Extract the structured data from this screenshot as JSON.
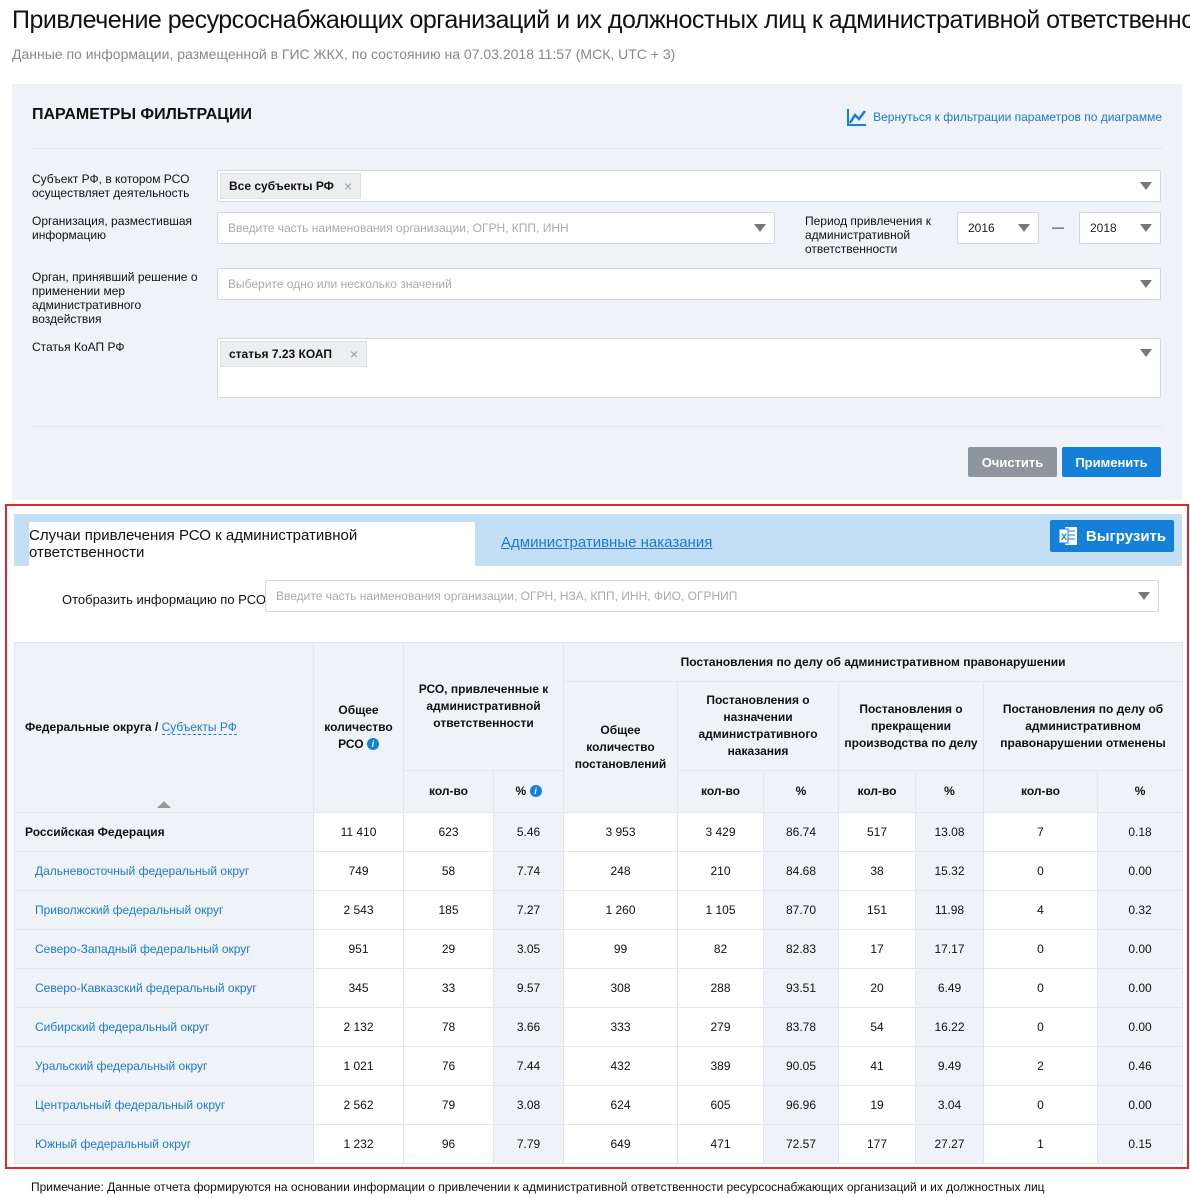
{
  "header": {
    "title": "Привлечение ресурсоснабжающих организаций и их должностных лиц к административной ответственности",
    "subtitle": "Данные по информации, размещенной в ГИС ЖКХ, по состоянию на 07.03.2018 11:57 (МСК, UTC + 3)"
  },
  "filter": {
    "title": "ПАРАМЕТРЫ ФИЛЬТРАЦИИ",
    "back_link": "Вернуться к фильтрации параметров по диаграмме",
    "subject_label": "Субъект РФ, в котором РСО осуществляет деятельность",
    "subject_chip": "Все субъекты РФ",
    "org_label": "Организация, разместившая информацию",
    "org_placeholder": "Введите часть наименования организации, ОГРН, КПП, ИНН",
    "period_label": "Период привлечения к административной ответственности",
    "period_from": "2016",
    "period_dash": "—",
    "period_to": "2018",
    "organ_label": "Орган, принявший решение о применении мер административного воздействия",
    "organ_placeholder": "Выберите одно или несколько значений",
    "article_label": "Статья КоАП РФ",
    "article_chip": "статья 7.23 КОАП",
    "clear": "Очистить",
    "apply": "Применить",
    "chip_close": "×"
  },
  "tabs": {
    "active": "Случаи привлечения РСО к административной ответственности",
    "other": "Административные наказания",
    "export": "Выгрузить"
  },
  "rso": {
    "label": "Отобразить информацию по РСО",
    "placeholder": "Введите часть наименования организации, ОГРН, НЗА, КПП, ИНН, ФИО, ОГРНИП"
  },
  "table": {
    "h_name": "Федеральные округа",
    "h_sep": " / ",
    "h_sub": "Субъекты РФ",
    "h_total_rso": "Общее количество РСО",
    "h_rso_attr": "РСО, привлеченные к административной ответственности",
    "h_decisions": "Постановления по делу об административном правонарушении",
    "h_total_dec": "Общее количество постановлений",
    "h_assign": "Постановления о назначении административного наказания",
    "h_terminate": "Постановления о прекращении производства по делу",
    "h_cancel": "Постановления по делу об административном правонарушении отменены",
    "h_qty": "кол-во",
    "h_pct": "%",
    "info": "i",
    "rows": [
      {
        "name": "Российская Федерация",
        "v": [
          "11 410",
          "623",
          "5.46",
          "3 953",
          "3 429",
          "86.74",
          "517",
          "13.08",
          "7",
          "0.18"
        ]
      },
      {
        "name": "Дальневосточный федеральный округ",
        "v": [
          "749",
          "58",
          "7.74",
          "248",
          "210",
          "84.68",
          "38",
          "15.32",
          "0",
          "0.00"
        ]
      },
      {
        "name": "Приволжский федеральный округ",
        "v": [
          "2 543",
          "185",
          "7.27",
          "1 260",
          "1 105",
          "87.70",
          "151",
          "11.98",
          "4",
          "0.32"
        ]
      },
      {
        "name": "Северо-Западный федеральный округ",
        "v": [
          "951",
          "29",
          "3.05",
          "99",
          "82",
          "82.83",
          "17",
          "17.17",
          "0",
          "0.00"
        ]
      },
      {
        "name": "Северо-Кавказский федеральный округ",
        "v": [
          "345",
          "33",
          "9.57",
          "308",
          "288",
          "93.51",
          "20",
          "6.49",
          "0",
          "0.00"
        ]
      },
      {
        "name": "Сибирский федеральный округ",
        "v": [
          "2 132",
          "78",
          "3.66",
          "333",
          "279",
          "83.78",
          "54",
          "16.22",
          "0",
          "0.00"
        ]
      },
      {
        "name": "Уральский федеральный округ",
        "v": [
          "1 021",
          "76",
          "7.44",
          "432",
          "389",
          "90.05",
          "41",
          "9.49",
          "2",
          "0.46"
        ]
      },
      {
        "name": "Центральный федеральный округ",
        "v": [
          "2 562",
          "79",
          "3.08",
          "624",
          "605",
          "96.96",
          "19",
          "3.04",
          "0",
          "0.00"
        ]
      },
      {
        "name": "Южный федеральный округ",
        "v": [
          "1 232",
          "96",
          "7.79",
          "649",
          "471",
          "72.57",
          "177",
          "27.27",
          "1",
          "0.15"
        ]
      }
    ]
  },
  "note": "Примечание: Данные отчета формируются на основании информации о привлечении к административной ответственности ресурсоснабжающих организаций и их должностных лиц",
  "colors": {
    "accent": "#1580d8",
    "link": "#1e7bc8",
    "highlight_border": "#e3262c",
    "panel": "#eff2f6",
    "tabbar": "#c3dff5"
  }
}
